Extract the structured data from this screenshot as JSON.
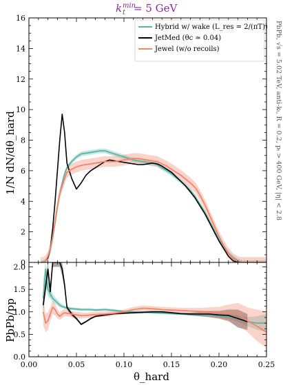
{
  "colors": {
    "hybrid": "#5ab4a6",
    "jetmed": "#000000",
    "jewel": "#f2856a",
    "title": "#8a2aa0"
  },
  "figure": {
    "title_main": "k",
    "title_sub": "t",
    "title_sup": "min",
    "title_value": " = 5 GeV",
    "side_note": "PbPb, √s = 5.02 TeV, anti-kₜ, R = 0.2, pₜ > 400 GeV, |η| < 2.8"
  },
  "chart_data": [
    {
      "type": "line",
      "panel": "top",
      "xlabel": "",
      "ylabel": "1/N dN/dθ_hard",
      "xlim": [
        0.0,
        0.25
      ],
      "ylim": [
        0,
        16
      ],
      "yticks": [
        "0",
        "2",
        "4",
        "6",
        "8",
        "10",
        "12",
        "14",
        "16"
      ],
      "legend_position": "top-right",
      "x": [
        0.0125,
        0.015,
        0.0175,
        0.02,
        0.0225,
        0.025,
        0.0275,
        0.03,
        0.0325,
        0.035,
        0.0375,
        0.04,
        0.045,
        0.05,
        0.055,
        0.06,
        0.065,
        0.07,
        0.075,
        0.08,
        0.085,
        0.09,
        0.095,
        0.1,
        0.105,
        0.11,
        0.115,
        0.12,
        0.125,
        0.13,
        0.135,
        0.14,
        0.145,
        0.15,
        0.155,
        0.16,
        0.165,
        0.17,
        0.175,
        0.18,
        0.185,
        0.19,
        0.195,
        0.2,
        0.205,
        0.21,
        0.215,
        0.22,
        0.225,
        0.23,
        0.235,
        0.24,
        0.245,
        0.25
      ],
      "series": [
        {
          "name": "Hybrid w/ wake (L_res = 2/(πT))",
          "color": "hybrid",
          "values": [
            0.0,
            0.0,
            0.1,
            0.3,
            0.8,
            1.6,
            2.6,
            3.6,
            4.5,
            5.2,
            5.8,
            6.2,
            6.6,
            6.9,
            7.1,
            7.15,
            7.2,
            7.25,
            7.3,
            7.3,
            7.2,
            7.1,
            7.0,
            6.9,
            6.8,
            6.7,
            6.65,
            6.6,
            6.55,
            6.5,
            6.4,
            6.2,
            6.0,
            5.8,
            5.55,
            5.3,
            5.0,
            4.7,
            4.3,
            3.8,
            3.3,
            2.7,
            2.1,
            1.5,
            1.0,
            0.6,
            0.3,
            0.1,
            0.0,
            0.0,
            0.0,
            0.0,
            0.0,
            0.0
          ],
          "band": 0.15
        },
        {
          "name": "JetMed (θc ≃ 0.04)",
          "color": "jetmed",
          "values": [
            0.0,
            0.0,
            0.1,
            0.3,
            0.9,
            2.2,
            4.0,
            6.0,
            8.0,
            9.7,
            8.5,
            6.5,
            5.5,
            4.8,
            5.2,
            5.7,
            6.0,
            6.2,
            6.4,
            6.6,
            6.7,
            6.65,
            6.6,
            6.55,
            6.5,
            6.45,
            6.4,
            6.4,
            6.45,
            6.5,
            6.45,
            6.3,
            6.1,
            5.9,
            5.6,
            5.3,
            5.0,
            4.6,
            4.2,
            3.7,
            3.2,
            2.6,
            2.0,
            1.4,
            0.9,
            0.4,
            0.1,
            0.0,
            0.0,
            0.0,
            0.0,
            0.0,
            0.0,
            0.0
          ],
          "band": 0.0
        },
        {
          "name": "Jewel (w/o recoils)",
          "color": "jewel",
          "values": [
            0.0,
            0.0,
            0.1,
            0.4,
            0.9,
            1.7,
            2.7,
            3.7,
            4.5,
            5.0,
            5.5,
            5.9,
            6.1,
            6.25,
            6.35,
            6.4,
            6.45,
            6.5,
            6.55,
            6.6,
            6.6,
            6.6,
            6.65,
            6.7,
            6.75,
            6.8,
            6.8,
            6.75,
            6.7,
            6.65,
            6.6,
            6.45,
            6.3,
            6.1,
            5.9,
            5.7,
            5.45,
            5.2,
            4.9,
            4.4,
            3.8,
            3.1,
            2.4,
            1.7,
            1.1,
            0.6,
            0.25,
            0.05,
            0.0,
            0.0,
            0.0,
            0.0,
            0.0,
            0.0
          ],
          "band": 0.35
        }
      ]
    },
    {
      "type": "line",
      "panel": "bottom",
      "xlabel": "θ_hard",
      "ylabel": "PbPb/pp",
      "xlim": [
        0.0,
        0.25
      ],
      "ylim": [
        0.0,
        2.1
      ],
      "xticks": [
        "0.00",
        "0.05",
        "0.10",
        "0.15",
        "0.20",
        "0.25"
      ],
      "yticks": [
        "0.0",
        "0.5",
        "1.0",
        "1.5",
        "2.0"
      ],
      "x": [
        0.015,
        0.0175,
        0.02,
        0.0225,
        0.025,
        0.0275,
        0.03,
        0.0325,
        0.035,
        0.0375,
        0.04,
        0.045,
        0.05,
        0.055,
        0.06,
        0.065,
        0.07,
        0.08,
        0.09,
        0.1,
        0.11,
        0.12,
        0.13,
        0.14,
        0.15,
        0.16,
        0.17,
        0.18,
        0.19,
        0.2,
        0.21,
        0.22,
        0.23,
        0.24,
        0.25
      ],
      "series": [
        {
          "name": "Hybrid w/ wake (L_res = 2/(πT))",
          "color": "hybrid",
          "values": [
            1.3,
            1.95,
            1.5,
            1.4,
            1.3,
            1.25,
            1.2,
            1.15,
            1.12,
            1.1,
            1.08,
            1.07,
            1.06,
            1.05,
            1.05,
            1.05,
            1.04,
            1.05,
            1.03,
            1.01,
            1.0,
            0.99,
            0.98,
            0.97,
            0.96,
            0.95,
            0.95,
            0.94,
            0.93,
            0.92,
            0.9,
            0.85,
            0.78,
            0.75,
            0.75
          ],
          "band_low": [
            0.9,
            1.6,
            1.35,
            1.3,
            1.22,
            1.18,
            1.14,
            1.1,
            1.08,
            1.06,
            1.05,
            1.04,
            1.03,
            1.02,
            1.02,
            1.02,
            1.01,
            1.02,
            1.0,
            0.99,
            0.98,
            0.97,
            0.96,
            0.95,
            0.94,
            0.93,
            0.92,
            0.91,
            0.9,
            0.88,
            0.85,
            0.78,
            0.68,
            0.6,
            0.55
          ],
          "band_high": [
            1.7,
            2.1,
            1.7,
            1.55,
            1.4,
            1.33,
            1.27,
            1.21,
            1.17,
            1.14,
            1.12,
            1.1,
            1.09,
            1.08,
            1.08,
            1.08,
            1.07,
            1.08,
            1.06,
            1.03,
            1.02,
            1.01,
            1.0,
            0.99,
            0.98,
            0.97,
            0.98,
            0.97,
            0.96,
            0.96,
            0.95,
            0.92,
            0.88,
            0.9,
            0.95
          ]
        },
        {
          "name": "JetMed (θc ≃ 0.04)",
          "color": "jetmed",
          "values": [
            1.15,
            1.55,
            1.95,
            1.45,
            2.1,
            2.1,
            2.1,
            2.1,
            1.95,
            1.6,
            1.1,
            0.95,
            0.85,
            0.72,
            0.78,
            0.85,
            0.9,
            0.93,
            0.96,
            0.97,
            0.98,
            0.99,
            1.0,
            1.0,
            0.98,
            0.96,
            0.95,
            0.95,
            0.95,
            0.93,
            0.92,
            0.85,
            0.78,
            null,
            null
          ],
          "band_low": [
            1.0,
            1.4,
            1.8,
            1.3,
            2.0,
            2.0,
            2.0,
            2.0,
            1.8,
            1.5,
            1.05,
            0.9,
            0.82,
            0.7,
            0.76,
            0.83,
            0.88,
            0.91,
            0.94,
            0.95,
            0.96,
            0.97,
            0.98,
            0.98,
            0.96,
            0.94,
            0.92,
            0.9,
            0.88,
            0.85,
            0.8,
            0.65,
            0.6,
            null,
            null
          ],
          "band_high": [
            1.3,
            1.7,
            2.1,
            1.6,
            2.1,
            2.1,
            2.1,
            2.1,
            2.1,
            1.7,
            1.15,
            1.0,
            0.88,
            0.75,
            0.8,
            0.87,
            0.92,
            0.95,
            0.98,
            0.99,
            1.0,
            1.01,
            1.02,
            1.02,
            1.0,
            0.98,
            0.98,
            1.0,
            1.02,
            1.02,
            1.05,
            1.05,
            0.95,
            null,
            null
          ]
        },
        {
          "name": "Jewel (w/o recoils)",
          "color": "jewel",
          "values": [
            1.0,
            0.75,
            0.8,
            0.95,
            1.1,
            1.05,
            0.95,
            0.9,
            0.95,
            0.98,
            0.97,
            0.95,
            0.93,
            0.92,
            0.92,
            0.93,
            0.94,
            0.95,
            0.97,
            1.0,
            1.05,
            1.08,
            1.07,
            1.05,
            1.04,
            1.03,
            1.02,
            1.01,
            1.0,
            0.98,
            0.97,
            0.95,
            0.8,
            0.68,
            0.55
          ],
          "band_low": [
            0.7,
            0.55,
            0.6,
            0.8,
            0.95,
            0.92,
            0.85,
            0.82,
            0.86,
            0.9,
            0.9,
            0.88,
            0.86,
            0.85,
            0.86,
            0.87,
            0.88,
            0.89,
            0.92,
            0.95,
            0.99,
            1.02,
            1.01,
            0.99,
            0.98,
            0.97,
            0.95,
            0.93,
            0.9,
            0.85,
            0.78,
            0.7,
            0.55,
            0.35,
            0.2
          ],
          "band_high": [
            1.3,
            0.95,
            1.0,
            1.1,
            1.25,
            1.18,
            1.05,
            0.98,
            1.04,
            1.06,
            1.04,
            1.02,
            1.0,
            0.99,
            0.98,
            0.99,
            1.0,
            1.01,
            1.02,
            1.05,
            1.11,
            1.14,
            1.13,
            1.11,
            1.1,
            1.09,
            1.09,
            1.09,
            1.1,
            1.11,
            1.16,
            1.2,
            1.1,
            1.05,
            1.0
          ]
        }
      ]
    }
  ]
}
